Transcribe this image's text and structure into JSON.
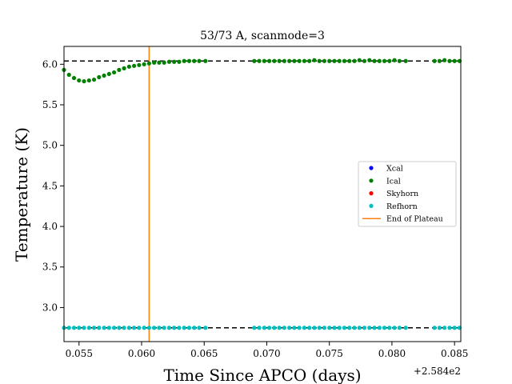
{
  "chart_data": {
    "type": "scatter",
    "title": "53/73 A, scanmode=3",
    "xlabel": "Time Since APCO (days)",
    "ylabel": "Temperature (K)",
    "x_offset_label": "+2.584e2",
    "xlim": [
      0.0538,
      0.0855
    ],
    "ylim": [
      2.58,
      6.22
    ],
    "x_ticks": [
      0.055,
      0.06,
      0.065,
      0.07,
      0.075,
      0.08,
      0.085
    ],
    "x_tick_labels": [
      "0.055",
      "0.060",
      "0.065",
      "0.070",
      "0.075",
      "0.080",
      "0.085"
    ],
    "y_ticks": [
      3.0,
      3.5,
      4.0,
      4.5,
      5.0,
      5.5,
      6.0
    ],
    "y_tick_labels": [
      "3.0",
      "3.5",
      "4.0",
      "4.5",
      "5.0",
      "5.5",
      "6.0"
    ],
    "reference_lines": [
      {
        "y": 6.04,
        "style": "dashed",
        "color": "#000000"
      },
      {
        "y": 2.75,
        "style": "dashed",
        "color": "#000000"
      }
    ],
    "vertical_line": {
      "name": "End of Plateau",
      "x": 0.0606,
      "color": "#ff7f0e"
    },
    "series": [
      {
        "name": "Xcal",
        "color": "#0000ff",
        "points": []
      },
      {
        "name": "Ical",
        "color": "#008000",
        "points": [
          [
            0.0538,
            5.93
          ],
          [
            0.0542,
            5.87
          ],
          [
            0.0546,
            5.83
          ],
          [
            0.055,
            5.8
          ],
          [
            0.0554,
            5.79
          ],
          [
            0.0558,
            5.8
          ],
          [
            0.0562,
            5.81
          ],
          [
            0.0566,
            5.84
          ],
          [
            0.057,
            5.86
          ],
          [
            0.0574,
            5.88
          ],
          [
            0.0578,
            5.9
          ],
          [
            0.0582,
            5.93
          ],
          [
            0.0586,
            5.95
          ],
          [
            0.059,
            5.97
          ],
          [
            0.0594,
            5.98
          ],
          [
            0.0598,
            5.99
          ],
          [
            0.0602,
            6.0
          ],
          [
            0.0606,
            6.01
          ],
          [
            0.061,
            6.02
          ],
          [
            0.0614,
            6.02
          ],
          [
            0.0618,
            6.02
          ],
          [
            0.0622,
            6.03
          ],
          [
            0.0626,
            6.03
          ],
          [
            0.063,
            6.03
          ],
          [
            0.0634,
            6.04
          ],
          [
            0.0638,
            6.04
          ],
          [
            0.0642,
            6.04
          ],
          [
            0.0646,
            6.04
          ],
          [
            0.0651,
            6.04
          ],
          [
            0.069,
            6.04
          ],
          [
            0.0694,
            6.04
          ],
          [
            0.0698,
            6.04
          ],
          [
            0.0702,
            6.04
          ],
          [
            0.0706,
            6.04
          ],
          [
            0.071,
            6.04
          ],
          [
            0.0714,
            6.04
          ],
          [
            0.0718,
            6.04
          ],
          [
            0.0722,
            6.04
          ],
          [
            0.0726,
            6.04
          ],
          [
            0.073,
            6.04
          ],
          [
            0.0734,
            6.04
          ],
          [
            0.0738,
            6.05
          ],
          [
            0.0742,
            6.04
          ],
          [
            0.0746,
            6.04
          ],
          [
            0.075,
            6.04
          ],
          [
            0.0754,
            6.04
          ],
          [
            0.0758,
            6.04
          ],
          [
            0.0762,
            6.04
          ],
          [
            0.0766,
            6.04
          ],
          [
            0.077,
            6.04
          ],
          [
            0.0774,
            6.05
          ],
          [
            0.0778,
            6.04
          ],
          [
            0.0782,
            6.05
          ],
          [
            0.0786,
            6.04
          ],
          [
            0.079,
            6.04
          ],
          [
            0.0794,
            6.04
          ],
          [
            0.0798,
            6.04
          ],
          [
            0.0802,
            6.05
          ],
          [
            0.0806,
            6.04
          ],
          [
            0.0811,
            6.04
          ],
          [
            0.0834,
            6.04
          ],
          [
            0.0838,
            6.04
          ],
          [
            0.0842,
            6.05
          ],
          [
            0.0846,
            6.04
          ],
          [
            0.085,
            6.04
          ],
          [
            0.0854,
            6.04
          ]
        ]
      },
      {
        "name": "Skyhorn",
        "color": "#ff0000",
        "points": []
      },
      {
        "name": "Refhorn",
        "color": "#00bfbf",
        "points": [
          [
            0.0538,
            2.75
          ],
          [
            0.0542,
            2.75
          ],
          [
            0.0546,
            2.75
          ],
          [
            0.055,
            2.75
          ],
          [
            0.0554,
            2.75
          ],
          [
            0.0558,
            2.75
          ],
          [
            0.0562,
            2.75
          ],
          [
            0.0566,
            2.75
          ],
          [
            0.057,
            2.75
          ],
          [
            0.0574,
            2.75
          ],
          [
            0.0578,
            2.75
          ],
          [
            0.0582,
            2.75
          ],
          [
            0.0586,
            2.75
          ],
          [
            0.059,
            2.75
          ],
          [
            0.0594,
            2.75
          ],
          [
            0.0598,
            2.75
          ],
          [
            0.0602,
            2.75
          ],
          [
            0.0606,
            2.75
          ],
          [
            0.061,
            2.75
          ],
          [
            0.0614,
            2.75
          ],
          [
            0.0618,
            2.75
          ],
          [
            0.0622,
            2.75
          ],
          [
            0.0626,
            2.75
          ],
          [
            0.063,
            2.75
          ],
          [
            0.0634,
            2.75
          ],
          [
            0.0638,
            2.75
          ],
          [
            0.0642,
            2.75
          ],
          [
            0.0646,
            2.75
          ],
          [
            0.0651,
            2.75
          ],
          [
            0.069,
            2.75
          ],
          [
            0.0694,
            2.75
          ],
          [
            0.0698,
            2.75
          ],
          [
            0.0702,
            2.75
          ],
          [
            0.0706,
            2.75
          ],
          [
            0.071,
            2.75
          ],
          [
            0.0714,
            2.75
          ],
          [
            0.0718,
            2.75
          ],
          [
            0.0722,
            2.75
          ],
          [
            0.0726,
            2.75
          ],
          [
            0.073,
            2.75
          ],
          [
            0.0734,
            2.75
          ],
          [
            0.0738,
            2.75
          ],
          [
            0.0742,
            2.75
          ],
          [
            0.0746,
            2.75
          ],
          [
            0.075,
            2.75
          ],
          [
            0.0754,
            2.75
          ],
          [
            0.0758,
            2.75
          ],
          [
            0.0762,
            2.75
          ],
          [
            0.0766,
            2.75
          ],
          [
            0.077,
            2.75
          ],
          [
            0.0774,
            2.75
          ],
          [
            0.0778,
            2.75
          ],
          [
            0.0782,
            2.75
          ],
          [
            0.0786,
            2.75
          ],
          [
            0.079,
            2.75
          ],
          [
            0.0794,
            2.75
          ],
          [
            0.0798,
            2.75
          ],
          [
            0.0802,
            2.75
          ],
          [
            0.0806,
            2.75
          ],
          [
            0.0811,
            2.75
          ],
          [
            0.0834,
            2.75
          ],
          [
            0.0838,
            2.75
          ],
          [
            0.0842,
            2.75
          ],
          [
            0.0846,
            2.75
          ],
          [
            0.085,
            2.75
          ],
          [
            0.0854,
            2.75
          ]
        ]
      }
    ],
    "legend": {
      "placement": "center-right",
      "entries": [
        "Xcal",
        "Ical",
        "Skyhorn",
        "Refhorn",
        "End of Plateau"
      ]
    },
    "grid": false
  }
}
